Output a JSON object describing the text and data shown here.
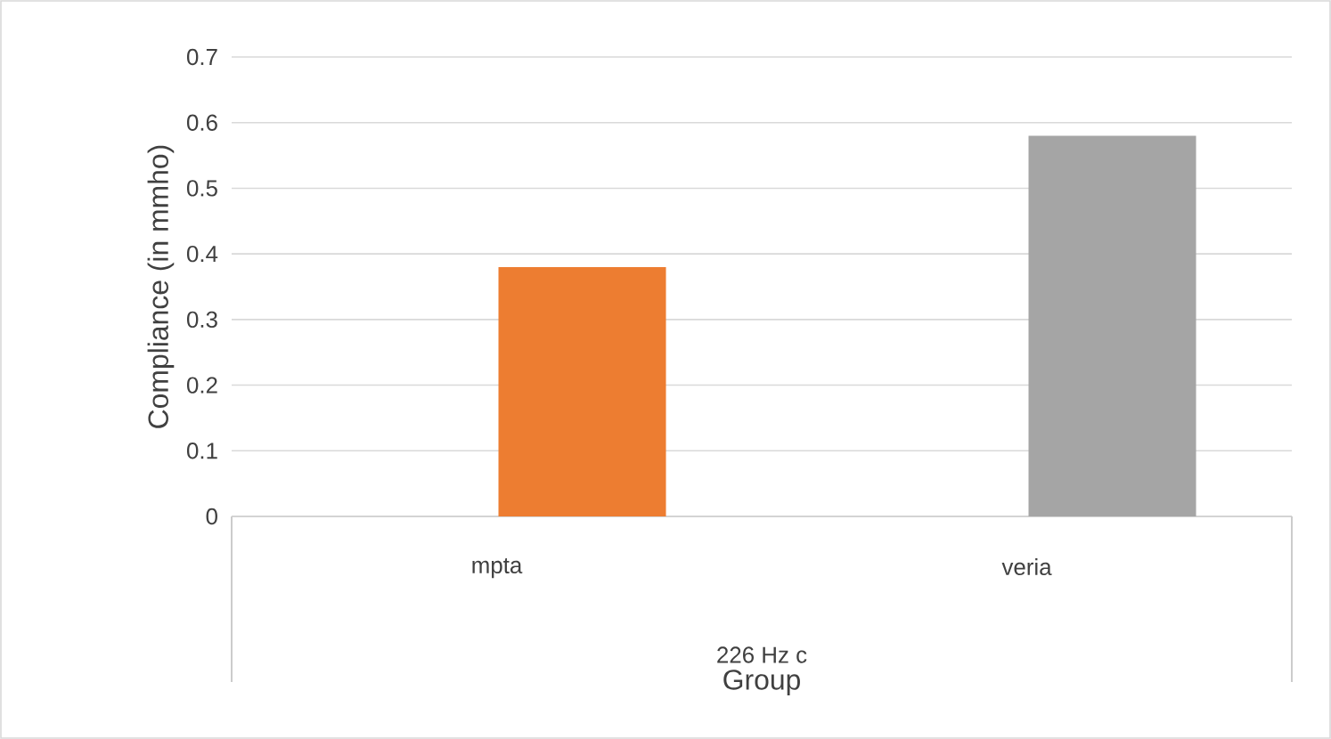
{
  "chart_data": {
    "type": "bar",
    "categories": [
      "mpta",
      "veria"
    ],
    "values": [
      0.38,
      0.58
    ],
    "colors": [
      "#ed7d31",
      "#a5a5a5"
    ],
    "xlabel": "Group",
    "ylabel": "Compliance (in mmho)",
    "annotations": [
      "226 Hz c"
    ],
    "ylim": [
      0,
      0.7
    ],
    "yticks": [
      0,
      0.1,
      0.2,
      0.3,
      0.4,
      0.5,
      0.6,
      0.7
    ],
    "grid": "y"
  }
}
